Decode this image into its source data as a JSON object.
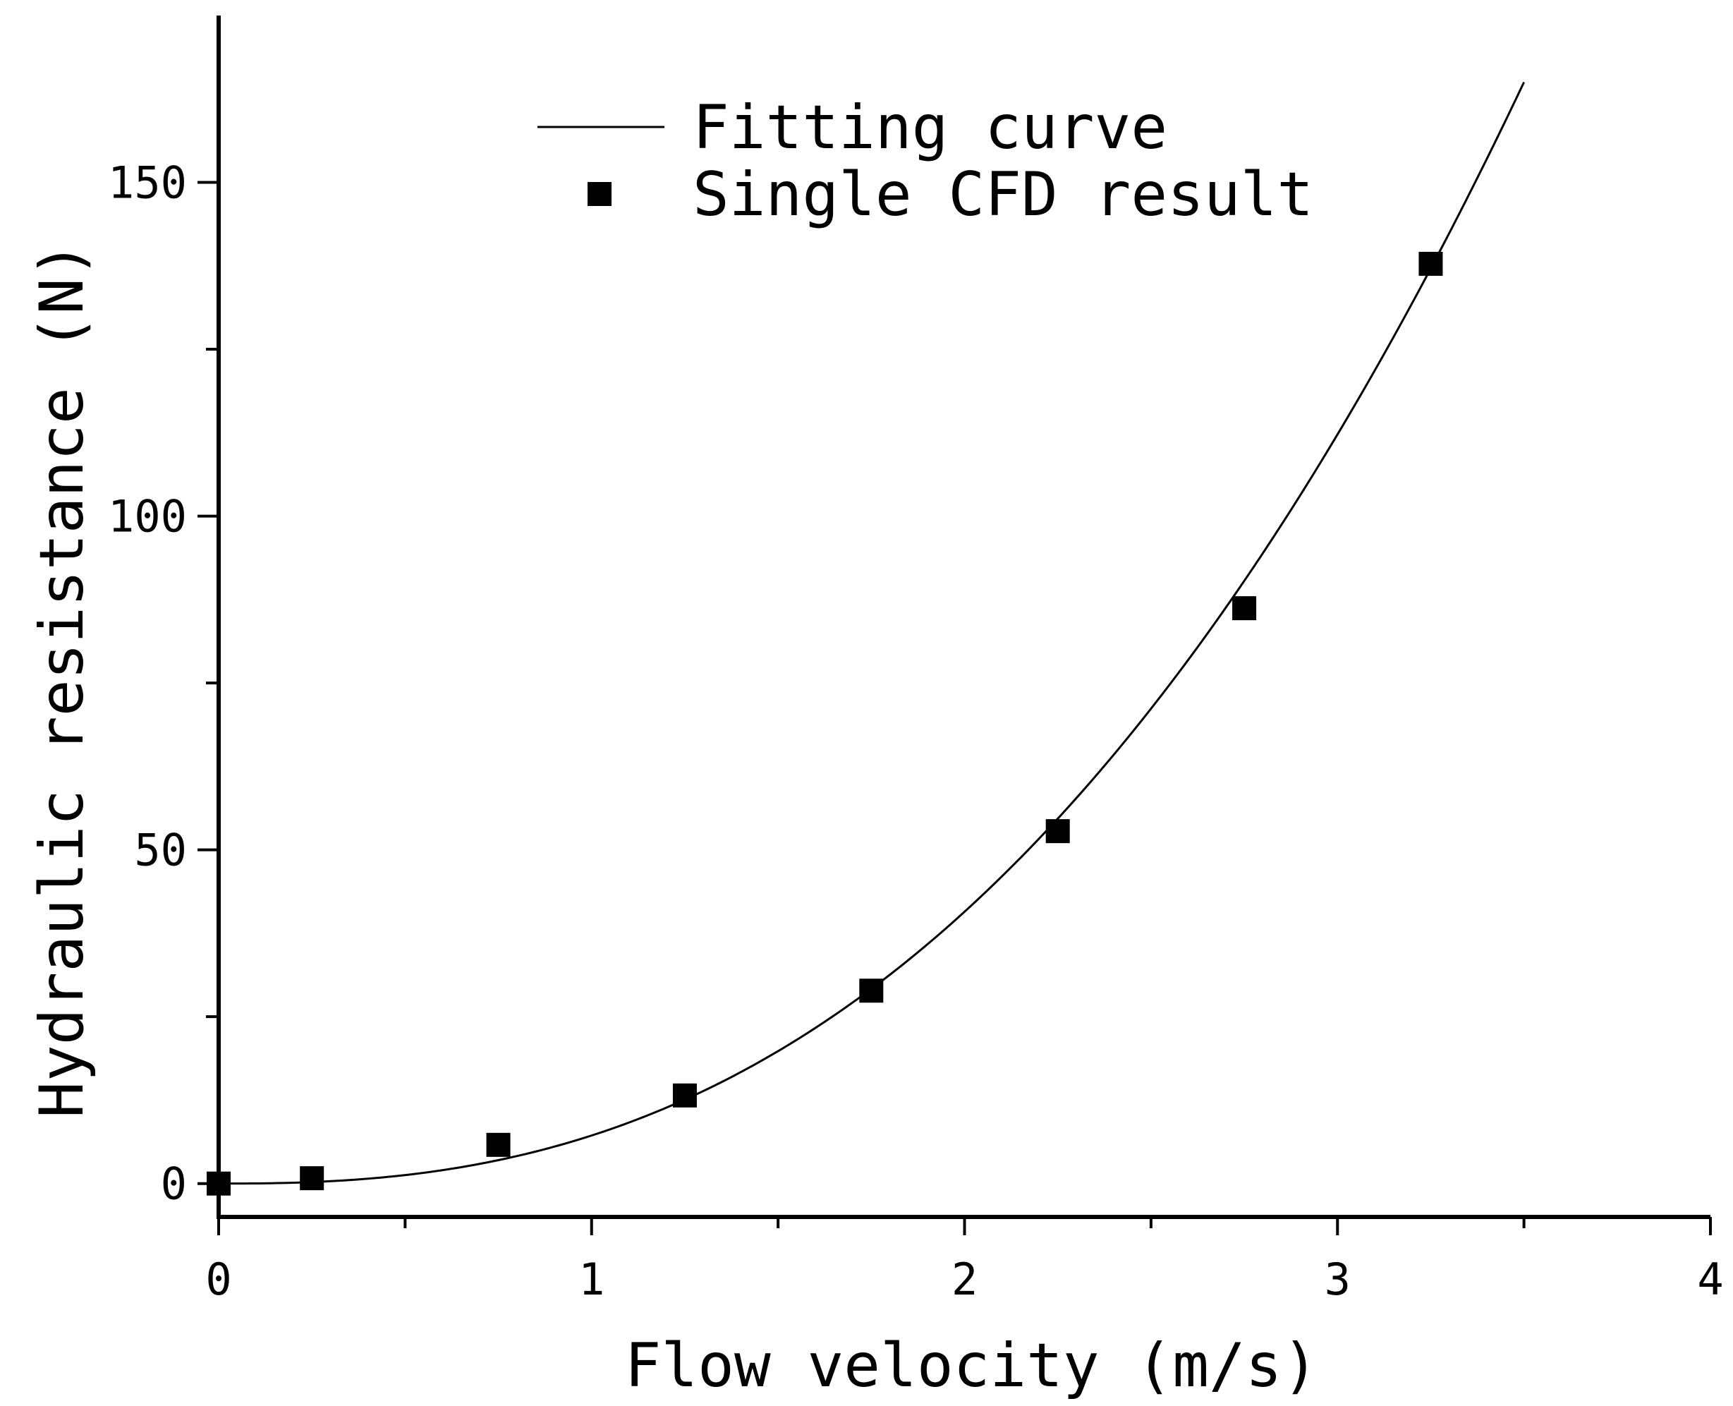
{
  "chart_data": {
    "type": "scatter",
    "title": "",
    "xlabel": "Flow velocity (m/s)",
    "ylabel": "Hydraulic resistance (N)",
    "xlim": [
      0,
      4
    ],
    "ylim": [
      -5,
      175
    ],
    "x_ticks": [
      {
        "value": 0,
        "label": "0"
      },
      {
        "value": 1,
        "label": "1"
      },
      {
        "value": 2,
        "label": "2"
      },
      {
        "value": 3,
        "label": "3"
      },
      {
        "value": 4,
        "label": "4"
      }
    ],
    "x_minor_ticks": [
      0.5,
      1.5,
      2.5,
      3.5
    ],
    "y_ticks": [
      {
        "value": 0,
        "label": "0"
      },
      {
        "value": 50,
        "label": "50"
      },
      {
        "value": 100,
        "label": "100"
      },
      {
        "value": 150,
        "label": "150"
      }
    ],
    "y_minor_ticks": [
      25,
      75,
      125
    ],
    "grid": false,
    "legend_position": "top-center",
    "series": [
      {
        "name": "Fitting curve",
        "kind": "line",
        "color": "#000000",
        "x_range": [
          0,
          3.5
        ],
        "fit": {
          "form": "y = a*x^p",
          "a": 7.2,
          "p": 2.5
        }
      },
      {
        "name": "Single CFD result",
        "kind": "scatter",
        "marker": "square",
        "color": "#000000",
        "x": [
          0,
          0.25,
          0.75,
          1.25,
          1.75,
          2.25,
          2.75,
          3.25
        ],
        "y": [
          0,
          0.8,
          5.8,
          13.2,
          28.9,
          52.8,
          86.2,
          137.8
        ]
      }
    ]
  }
}
